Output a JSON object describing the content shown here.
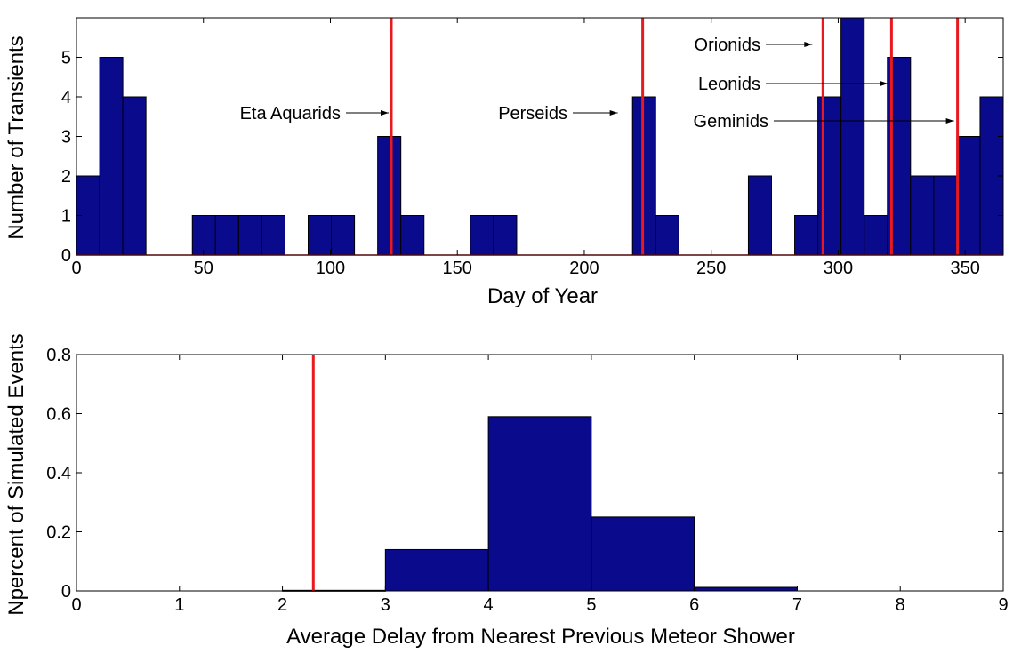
{
  "chart_data": [
    {
      "type": "bar",
      "title": "",
      "xlabel": "Day of Year",
      "ylabel": "Number of Transients",
      "xlim": [
        0,
        365
      ],
      "ylim": [
        0,
        6
      ],
      "bin_width_days": 9.125,
      "bar_color": "#0a0a8c",
      "xticks": [
        0,
        50,
        100,
        150,
        200,
        250,
        300,
        350
      ],
      "yticks": [
        0,
        1,
        2,
        3,
        4,
        5
      ],
      "counts": [
        2,
        5,
        4,
        0,
        0,
        1,
        1,
        1,
        1,
        0,
        1,
        1,
        0,
        3,
        1,
        0,
        0,
        1,
        1,
        0,
        0,
        0,
        0,
        0,
        4,
        1,
        0,
        0,
        0,
        2,
        0,
        1,
        4,
        6,
        1,
        5,
        2,
        2,
        3,
        4
      ],
      "meteor_showers": [
        {
          "name": "Eta Aquarids",
          "day": 124
        },
        {
          "name": "Perseids",
          "day": 223
        },
        {
          "name": "Orionids",
          "day": 294
        },
        {
          "name": "Leonids",
          "day": 321
        },
        {
          "name": "Geminids",
          "day": 347
        }
      ],
      "shower_line_color": "#e8191f",
      "grid": false
    },
    {
      "type": "bar",
      "title": "",
      "xlabel": "Average Delay from Nearest Previous Meteor Shower",
      "ylabel": "Npercent of Simulated Events",
      "xlim": [
        0,
        9
      ],
      "ylim": [
        0,
        0.8
      ],
      "xticks": [
        0,
        1,
        2,
        3,
        4,
        5,
        6,
        7,
        8,
        9
      ],
      "yticks": [
        0,
        0.2,
        0.4,
        0.6,
        0.8
      ],
      "bins": [
        {
          "x0": 2,
          "x1": 3,
          "value": 0.002
        },
        {
          "x0": 3,
          "x1": 4,
          "value": 0.14
        },
        {
          "x0": 4,
          "x1": 5,
          "value": 0.59
        },
        {
          "x0": 5,
          "x1": 6,
          "value": 0.25
        },
        {
          "x0": 6,
          "x1": 7,
          "value": 0.012
        }
      ],
      "observed_value": 2.3,
      "bar_color": "#0a0a8c",
      "marker_line_color": "#e8191f",
      "grid": false
    }
  ]
}
